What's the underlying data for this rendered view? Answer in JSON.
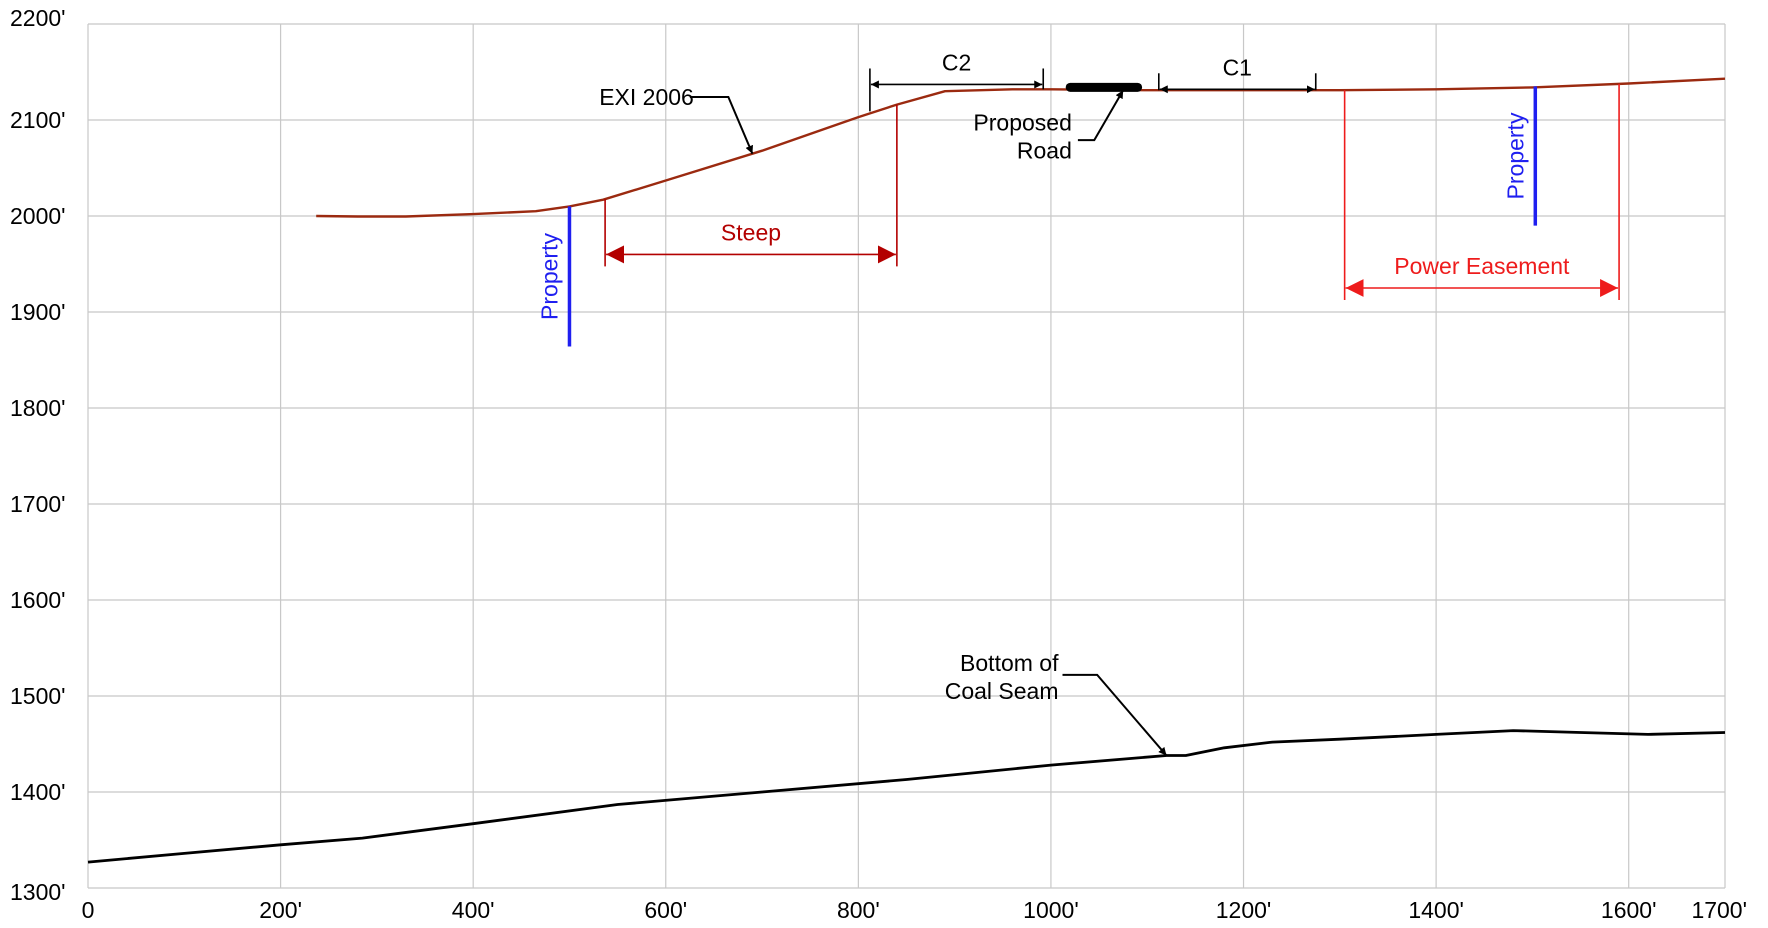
{
  "chart_data": {
    "type": "line",
    "xlim": [
      0,
      1700
    ],
    "ylim": [
      1300,
      2200
    ],
    "x_ticks": [
      {
        "value": 0,
        "label": "0"
      },
      {
        "value": 200,
        "label": "200'"
      },
      {
        "value": 400,
        "label": "400'"
      },
      {
        "value": 600,
        "label": "600'"
      },
      {
        "value": 800,
        "label": "800'"
      },
      {
        "value": 1000,
        "label": "1000'"
      },
      {
        "value": 1200,
        "label": "1200'"
      },
      {
        "value": 1400,
        "label": "1400'"
      },
      {
        "value": 1600,
        "label": "1600'"
      },
      {
        "value": 1700,
        "label": "1700'"
      }
    ],
    "y_ticks": [
      {
        "value": 2200,
        "label": "2200'"
      },
      {
        "value": 2100,
        "label": "2100'"
      },
      {
        "value": 2000,
        "label": "2000'"
      },
      {
        "value": 1900,
        "label": "1900'"
      },
      {
        "value": 1800,
        "label": "1800'"
      },
      {
        "value": 1700,
        "label": "1700'"
      },
      {
        "value": 1600,
        "label": "1600'"
      },
      {
        "value": 1500,
        "label": "1500'"
      },
      {
        "value": 1400,
        "label": "1400'"
      },
      {
        "value": 1300,
        "label": "1300'"
      }
    ],
    "grid": true,
    "series": [
      {
        "name": "EXI 2006",
        "color": "#9b2a10",
        "x": [
          237,
          280,
          330,
          400,
          465,
          500,
          535,
          600,
          700,
          800,
          840,
          890,
          960,
          1000,
          1100,
          1200,
          1300,
          1400,
          1500,
          1600,
          1700
        ],
        "y": [
          2000,
          1999.5,
          1999.5,
          2002,
          2005,
          2010,
          2017,
          2037,
          2068,
          2103,
          2116,
          2130,
          2132,
          2132,
          2131,
          2131,
          2131,
          2132,
          2134,
          2138,
          2143
        ]
      },
      {
        "name": "Bottom of Coal Seam",
        "color": "#000000",
        "x": [
          0,
          100,
          200,
          285,
          400,
          550,
          700,
          850,
          1000,
          1120,
          1140,
          1180,
          1230,
          1300,
          1400,
          1480,
          1550,
          1620,
          1700
        ],
        "y": [
          1327,
          1336,
          1345,
          1352,
          1367,
          1387,
          1400,
          1413,
          1428,
          1438,
          1438,
          1446,
          1452,
          1455,
          1460,
          1464,
          1462,
          1460,
          1462
        ]
      }
    ],
    "annotations": [
      {
        "kind": "leader",
        "text": "EXI 2006",
        "color": "#000000"
      },
      {
        "kind": "leader",
        "text": "Bottom of Coal Seam",
        "lines": [
          "Bottom of",
          "Coal Seam"
        ],
        "color": "#000000"
      },
      {
        "kind": "leader",
        "text": "Proposed Road",
        "lines": [
          "Proposed",
          "Road"
        ],
        "color": "#000000"
      },
      {
        "kind": "dimension",
        "text": "C2",
        "x_start": 812,
        "x_end": 992,
        "y": 2137,
        "color": "#000000"
      },
      {
        "kind": "dimension",
        "text": "C1",
        "x_start": 1112,
        "x_end": 1275,
        "y": 2132,
        "color": "#000000"
      },
      {
        "kind": "dimension",
        "text": "Steep",
        "x_start": 537,
        "x_end": 840,
        "y": 1960,
        "color": "#b30000"
      },
      {
        "kind": "dimension",
        "text": "Power Easement",
        "x_start": 1305,
        "x_end": 1590,
        "y": 1925,
        "color": "#ee1c1c"
      },
      {
        "kind": "marker",
        "text": "Property",
        "x": 500,
        "y_top": 2010,
        "y_bottom": 1864,
        "color": "#1f1ff0"
      },
      {
        "kind": "marker",
        "text": "Property",
        "x": 1503,
        "y_top": 2135,
        "y_bottom": 1990,
        "color": "#1f1ff0"
      },
      {
        "kind": "road",
        "x_start": 1020,
        "x_end": 1090,
        "y": 2134,
        "color": "#000000"
      }
    ]
  }
}
